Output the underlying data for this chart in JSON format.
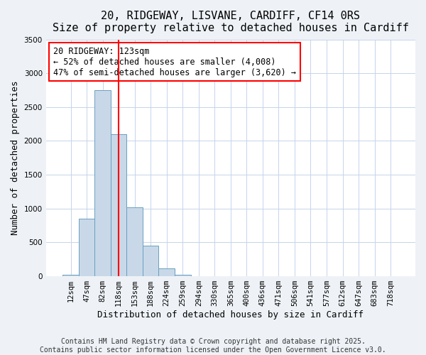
{
  "title_line1": "20, RIDGEWAY, LISVANE, CARDIFF, CF14 0RS",
  "title_line2": "Size of property relative to detached houses in Cardiff",
  "xlabel": "Distribution of detached houses by size in Cardiff",
  "ylabel": "Number of detached properties",
  "bar_color": "#c8d8e8",
  "bar_edge_color": "#6aa0c0",
  "categories": [
    "12sqm",
    "47sqm",
    "82sqm",
    "118sqm",
    "153sqm",
    "188sqm",
    "224sqm",
    "259sqm",
    "294sqm",
    "330sqm",
    "365sqm",
    "400sqm",
    "436sqm",
    "471sqm",
    "506sqm",
    "541sqm",
    "577sqm",
    "612sqm",
    "647sqm",
    "683sqm",
    "718sqm"
  ],
  "values": [
    20,
    850,
    2750,
    2100,
    1020,
    450,
    120,
    25,
    5,
    0,
    0,
    0,
    0,
    0,
    0,
    0,
    0,
    0,
    0,
    0,
    0
  ],
  "red_line_index": 3,
  "ylim": [
    0,
    3500
  ],
  "yticks": [
    0,
    500,
    1000,
    1500,
    2000,
    2500,
    3000,
    3500
  ],
  "annotation_text": "20 RIDGEWAY: 123sqm\n← 52% of detached houses are smaller (4,008)\n47% of semi-detached houses are larger (3,620) →",
  "footnote_line1": "Contains HM Land Registry data © Crown copyright and database right 2025.",
  "footnote_line2": "Contains public sector information licensed under the Open Government Licence v3.0.",
  "bg_color": "#eef2f7",
  "plot_bg_color": "#ffffff",
  "grid_color": "#c5d5e8",
  "title_fontsize": 11,
  "label_fontsize": 9,
  "tick_fontsize": 7.5,
  "footnote_fontsize": 7,
  "annot_fontsize": 8.5
}
